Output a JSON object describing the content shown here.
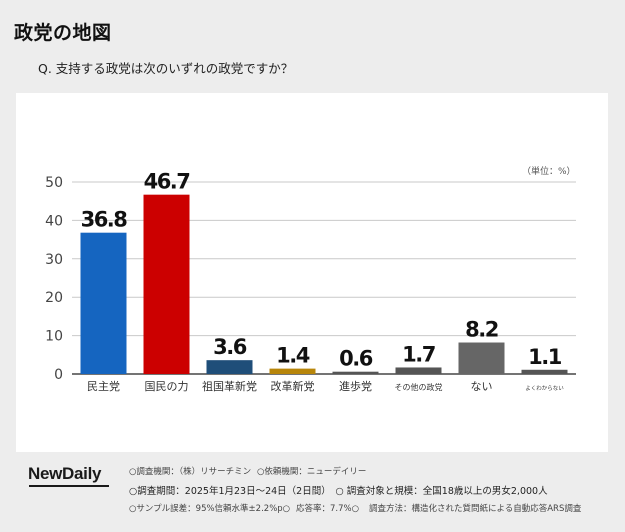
{
  "header": {
    "title": "政党の地図",
    "question": "Q. 支持する政党は次のいずれの政党ですか？"
  },
  "unit_label": "（単位：%）",
  "chart_data": {
    "type": "bar",
    "categories": [
      "民主党",
      "国民の力",
      "祖国革新党",
      "改革新党",
      "進歩党",
      "その他の政党",
      "ない",
      "よくわからない"
    ],
    "values": [
      36.8,
      46.7,
      3.6,
      1.4,
      0.6,
      1.7,
      8.2,
      1.1
    ],
    "value_labels": [
      "36.8",
      "46.7",
      "3.6",
      "1.4",
      "0.6",
      "1.7",
      "8.2",
      "1.1"
    ],
    "colors": [
      "#1565c0",
      "#cc0000",
      "#1f4e79",
      "#b8860b",
      "#555555",
      "#555555",
      "#666666",
      "#555555"
    ],
    "yticks": [
      0,
      10,
      20,
      30,
      40,
      50
    ],
    "ylim": [
      0,
      50
    ],
    "grid": true,
    "legend": "none"
  },
  "footer": {
    "logo": "NewDaily",
    "line1a": "○調査機関：（株）リサーチミン",
    "line1b": "○依頼機関：ニューデイリー",
    "line2": "○調査期間：2025年1月23日〜24日（2日間）　○ 調査対象と規模：全国18歳以上の男女2,000人",
    "line3a": "○サンプル誤差：95%信頼水準±2.2%p○",
    "line3b": "応答率：7.7%○",
    "line3c": "調査方法：構造化された質問紙による自動応答ARS調査"
  }
}
